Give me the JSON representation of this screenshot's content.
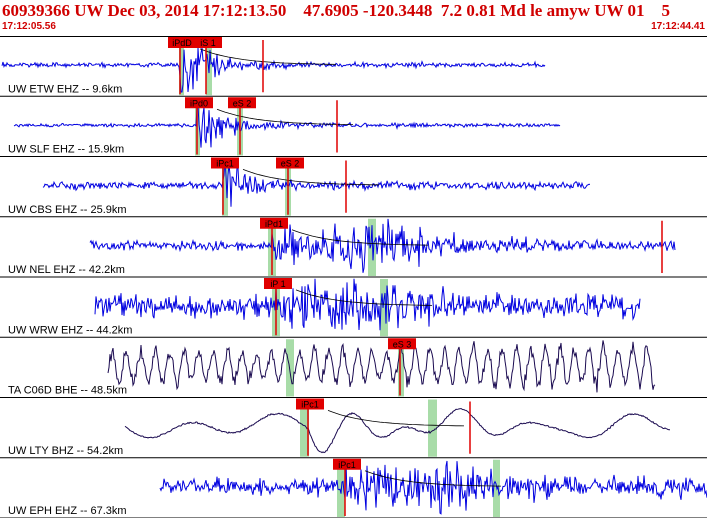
{
  "header": {
    "title": "60939366 UW Dec 03, 2014 17:12:13.50    47.6905 -120.3448  7.2 0.81 Md le amyw UW 01    5",
    "time_start": "17:12:05.56",
    "time_end": "17:12:44.41"
  },
  "colors": {
    "trace": "#0000e0",
    "broadband": "#1a0a50",
    "pick": "#e00000",
    "window": "#a8dca8"
  },
  "traces": [
    {
      "label": "UW ETW EHZ -- 9.6km",
      "picks": [
        {
          "text": "iPdD"
        },
        {
          "text": "iS 1"
        }
      ]
    },
    {
      "label": "UW SLF EHZ -- 15.9km",
      "picks": [
        {
          "text": "iPd0"
        },
        {
          "text": "eS 2"
        }
      ]
    },
    {
      "label": "UW CBS EHZ -- 25.9km",
      "picks": [
        {
          "text": "iPc1"
        },
        {
          "text": "eS 2"
        }
      ]
    },
    {
      "label": "UW NEL EHZ -- 42.2km",
      "picks": [
        {
          "text": "iPd1"
        }
      ]
    },
    {
      "label": "UW WRW EHZ -- 44.2km",
      "picks": [
        {
          "text": "iP 1"
        }
      ]
    },
    {
      "label": "TA C06D BHE -- 48.5km",
      "picks": [
        {
          "text": "eS 3"
        }
      ]
    },
    {
      "label": "UW LTY BHZ -- 54.2km",
      "picks": [
        {
          "text": "iPc1"
        }
      ]
    },
    {
      "label": "UW EPH EHZ -- 67.3km",
      "picks": [
        {
          "text": "iPc1"
        }
      ]
    }
  ]
}
